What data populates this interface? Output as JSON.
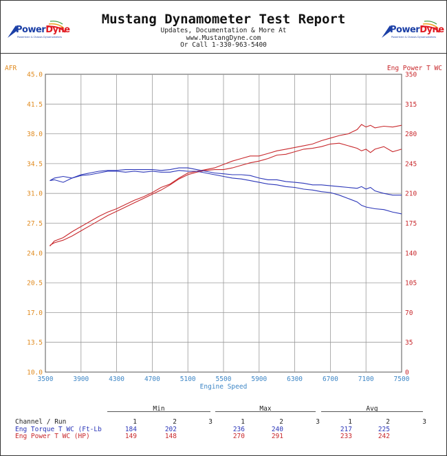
{
  "header": {
    "title": "Mustang Dynamometer Test Report",
    "subtitle_lines": [
      "Updates, Documentation & More At",
      "www.MustangDyne.com",
      "Or Call 1-330-963-5400"
    ],
    "logo_text_left": "Power",
    "logo_text_right": "Dyne",
    "logo_tagline": "Powertrain & Chassis Dynamometers"
  },
  "colors": {
    "afr_axis": "#e08a1e",
    "power": "#c8282c",
    "torque": "#2a35b8",
    "grid": "#999999",
    "xaxis": "#3d86c6"
  },
  "chart_data": {
    "type": "line",
    "xlabel": "Engine Speed",
    "left_axis_label": "AFR",
    "right_axis_label": "Eng Power T WC",
    "xlim": [
      3500,
      7500
    ],
    "left_ylim": [
      10.0,
      45.0
    ],
    "right_ylim": [
      0,
      350
    ],
    "x_ticks": [
      "3500",
      "3900",
      "4300",
      "4700",
      "5100",
      "5500",
      "5900",
      "6300",
      "6700",
      "7100",
      "7500"
    ],
    "left_ticks": [
      "10.0",
      "13.5",
      "17.0",
      "20.5",
      "24.0",
      "27.5",
      "31.0",
      "34.5",
      "38.0",
      "41.5",
      "45.0"
    ],
    "right_ticks": [
      "0",
      "35",
      "70",
      "105",
      "140",
      "175",
      "210",
      "245",
      "280",
      "315",
      "350"
    ],
    "grid": true,
    "series": [
      {
        "name": "Eng Power T WC (HP) Run 1",
        "color": "#c8282c",
        "x": [
          3550,
          3600,
          3700,
          3800,
          3900,
          4000,
          4100,
          4200,
          4300,
          4400,
          4500,
          4600,
          4700,
          4800,
          4900,
          5000,
          5100,
          5200,
          5300,
          5400,
          5500,
          5600,
          5700,
          5800,
          5900,
          6000,
          6100,
          6200,
          6300,
          6400,
          6500,
          6600,
          6700,
          6800,
          6900,
          7000,
          7050,
          7100,
          7150,
          7200,
          7300,
          7400,
          7500
        ],
        "y": [
          149,
          152,
          155,
          160,
          166,
          172,
          178,
          184,
          189,
          194,
          199,
          204,
          209,
          214,
          220,
          227,
          232,
          235,
          237,
          238,
          238,
          240,
          243,
          246,
          248,
          251,
          255,
          256,
          259,
          262,
          263,
          265,
          268,
          269,
          266,
          263,
          260,
          262,
          258,
          262,
          265,
          259,
          262
        ]
      },
      {
        "name": "Eng Power T WC (HP) Run 2",
        "color": "#c8282c",
        "x": [
          3550,
          3600,
          3700,
          3800,
          3900,
          4000,
          4100,
          4200,
          4300,
          4400,
          4500,
          4600,
          4700,
          4800,
          4900,
          5000,
          5100,
          5200,
          5300,
          5400,
          5500,
          5600,
          5700,
          5800,
          5900,
          6000,
          6100,
          6200,
          6300,
          6400,
          6500,
          6600,
          6700,
          6800,
          6900,
          7000,
          7050,
          7100,
          7150,
          7200,
          7300,
          7400,
          7500
        ],
        "y": [
          148,
          154,
          158,
          165,
          171,
          177,
          183,
          188,
          192,
          197,
          202,
          206,
          211,
          217,
          221,
          228,
          234,
          236,
          238,
          240,
          244,
          248,
          251,
          254,
          254,
          257,
          260,
          262,
          264,
          266,
          268,
          272,
          275,
          278,
          280,
          285,
          291,
          288,
          290,
          287,
          289,
          288,
          290
        ]
      },
      {
        "name": "Eng Torque T WC (Ft-Lb) Run 1",
        "color": "#2a35b8",
        "x": [
          3550,
          3600,
          3700,
          3800,
          3900,
          4000,
          4100,
          4200,
          4300,
          4400,
          4500,
          4600,
          4700,
          4800,
          4900,
          5000,
          5100,
          5200,
          5300,
          5400,
          5500,
          5600,
          5700,
          5800,
          5900,
          6000,
          6100,
          6200,
          6300,
          6400,
          6500,
          6600,
          6700,
          6800,
          6900,
          7000,
          7050,
          7100,
          7200,
          7300,
          7400,
          7500
        ],
        "y": [
          225,
          228,
          230,
          228,
          231,
          232,
          234,
          236,
          236,
          235,
          236,
          235,
          236,
          235,
          235,
          237,
          236,
          236,
          234,
          232,
          230,
          228,
          227,
          225,
          223,
          221,
          220,
          218,
          217,
          215,
          214,
          212,
          211,
          208,
          204,
          200,
          196,
          194,
          192,
          191,
          188,
          186
        ]
      },
      {
        "name": "Eng Torque T WC (Ft-Lb) Run 2",
        "color": "#2a35b8",
        "x": [
          3550,
          3600,
          3700,
          3800,
          3900,
          4000,
          4100,
          4200,
          4300,
          4400,
          4500,
          4600,
          4700,
          4800,
          4900,
          5000,
          5100,
          5200,
          5300,
          5400,
          5500,
          5600,
          5700,
          5800,
          5900,
          6000,
          6100,
          6200,
          6300,
          6400,
          6500,
          6600,
          6700,
          6800,
          6900,
          7000,
          7050,
          7100,
          7150,
          7200,
          7300,
          7400,
          7500
        ],
        "y": [
          225,
          226,
          223,
          228,
          232,
          234,
          236,
          237,
          237,
          238,
          238,
          238,
          238,
          237,
          238,
          240,
          240,
          238,
          236,
          234,
          233,
          232,
          232,
          231,
          228,
          226,
          226,
          224,
          223,
          222,
          220,
          220,
          219,
          218,
          217,
          216,
          218,
          215,
          217,
          213,
          210,
          208,
          208
        ]
      }
    ]
  },
  "summary": {
    "groups": [
      "Min",
      "Max",
      "Avg"
    ],
    "header_label": "Channel / Run",
    "run_labels": [
      "1",
      "2",
      "3"
    ],
    "rows": [
      {
        "label": "Eng Torque T WC (Ft-Lb",
        "color": "#2a35b8",
        "min": [
          "184",
          "202",
          ""
        ],
        "max": [
          "236",
          "240",
          ""
        ],
        "avg": [
          "217",
          "225",
          ""
        ]
      },
      {
        "label": "Eng Power T WC (HP)",
        "color": "#c8282c",
        "min": [
          "149",
          "148",
          ""
        ],
        "max": [
          "270",
          "291",
          ""
        ],
        "avg": [
          "233",
          "242",
          ""
        ]
      }
    ]
  }
}
